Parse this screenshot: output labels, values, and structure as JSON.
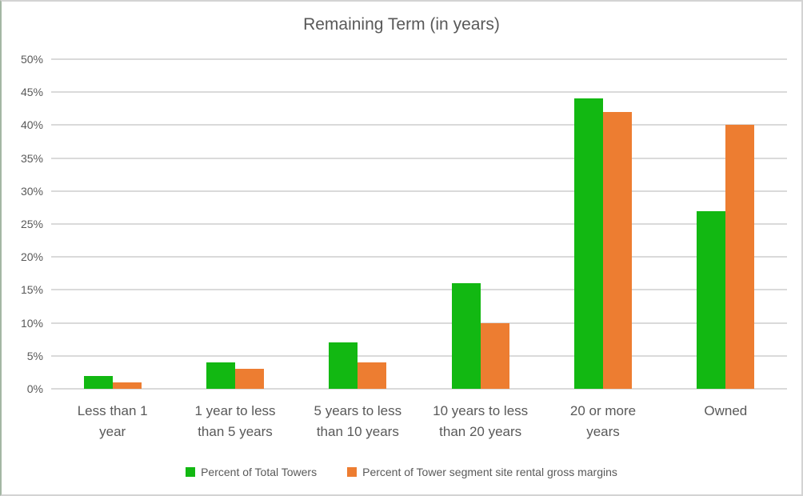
{
  "chart_data": {
    "type": "bar",
    "title": "Remaining Term (in years)",
    "categories": [
      "Less than 1 year",
      "1 year to less than 5 years",
      "5 years to less than 10 years",
      "10 years to less than 20 years",
      "20 or more years",
      "Owned"
    ],
    "category_lines": [
      [
        "Less than 1",
        "year"
      ],
      [
        "1 year to less",
        "than 5 years"
      ],
      [
        "5 years to less",
        "than 10 years"
      ],
      [
        "10 years to less",
        "than 20 years"
      ],
      [
        "20 or more",
        "years"
      ],
      [
        "Owned"
      ]
    ],
    "series": [
      {
        "name": "Percent of Total Towers",
        "color": "#12b812",
        "values": [
          2,
          4,
          7,
          16,
          44,
          27
        ]
      },
      {
        "name": "Percent of Tower segment site rental gross margins",
        "color": "#ed7d31",
        "values": [
          1,
          3,
          4,
          10,
          42,
          40
        ]
      }
    ],
    "xlabel": "",
    "ylabel": "",
    "ylim": [
      0,
      50
    ],
    "ytick_step": 5,
    "ytick_labels": [
      "0%",
      "5%",
      "10%",
      "15%",
      "20%",
      "25%",
      "30%",
      "35%",
      "40%",
      "45%",
      "50%"
    ],
    "grid": true,
    "legend_position": "bottom",
    "text_color": "#595959",
    "gridline_color": "#dadada"
  }
}
